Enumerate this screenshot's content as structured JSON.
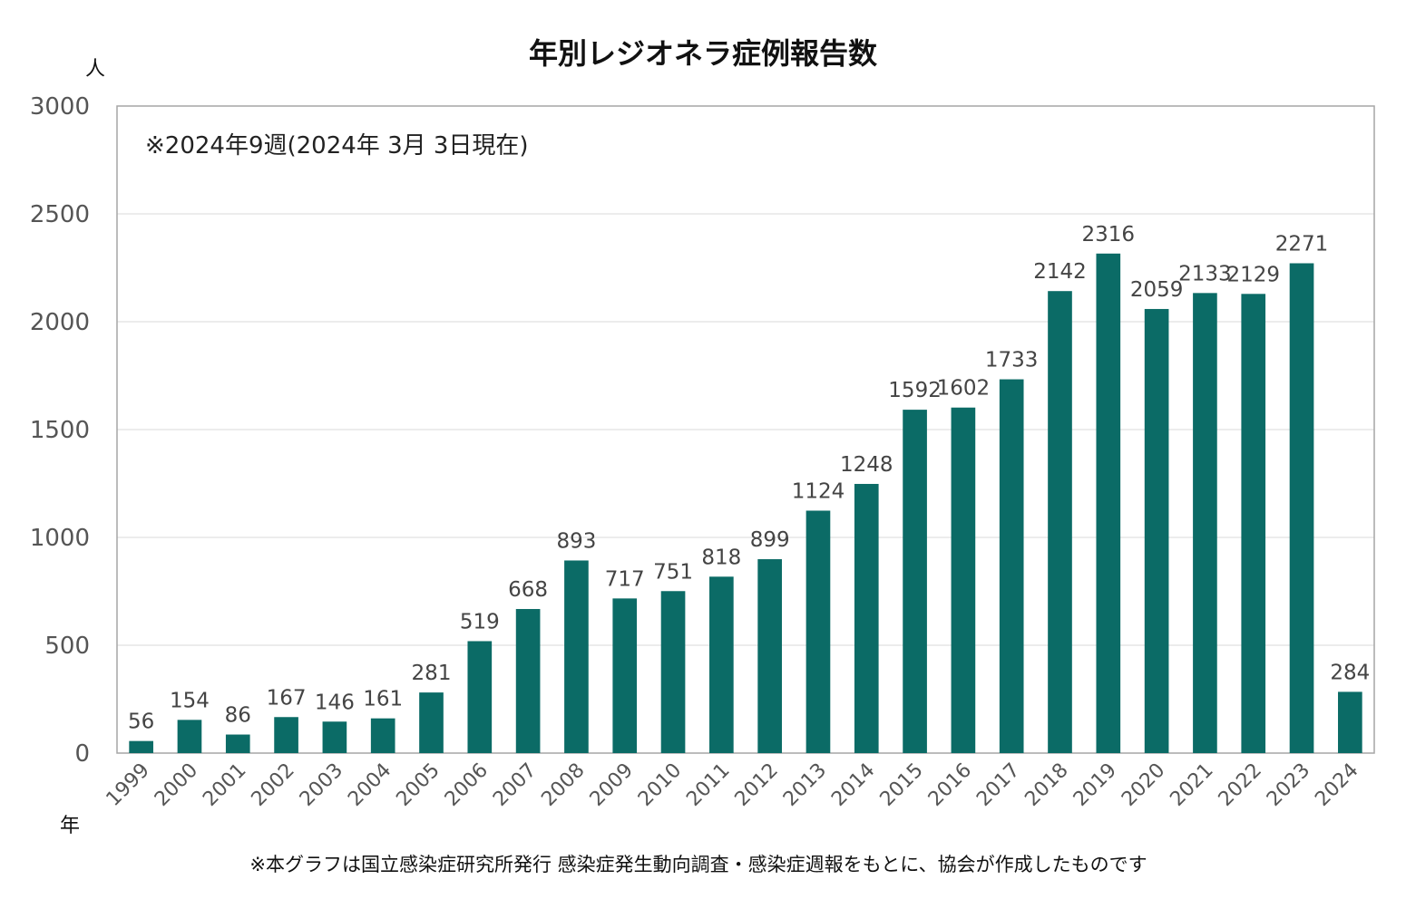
{
  "chart_data": {
    "type": "bar",
    "title": "年別レジオネラ症例報告数",
    "ylabel": "人",
    "xlabel": "年",
    "note": "※2024年9週(2024年 3月 3日現在)",
    "footnote": "※本グラフは国立感染症研究所発行 感染症発生動向調査・感染症週報をもとに、協会が作成したものです",
    "ylim": [
      0,
      3000
    ],
    "yticks": [
      0,
      500,
      1000,
      1500,
      2000,
      2500,
      3000
    ],
    "grid": true,
    "bar_color": "#0b6b66",
    "categories": [
      "1999",
      "2000",
      "2001",
      "2002",
      "2003",
      "2004",
      "2005",
      "2006",
      "2007",
      "2008",
      "2009",
      "2010",
      "2011",
      "2012",
      "2013",
      "2014",
      "2015",
      "2016",
      "2017",
      "2018",
      "2019",
      "2020",
      "2021",
      "2022",
      "2023",
      "2024"
    ],
    "values": [
      56,
      154,
      86,
      167,
      146,
      161,
      281,
      519,
      668,
      893,
      717,
      751,
      818,
      899,
      1124,
      1248,
      1592,
      1602,
      1733,
      2142,
      2316,
      2059,
      2133,
      2129,
      2271,
      284
    ]
  }
}
